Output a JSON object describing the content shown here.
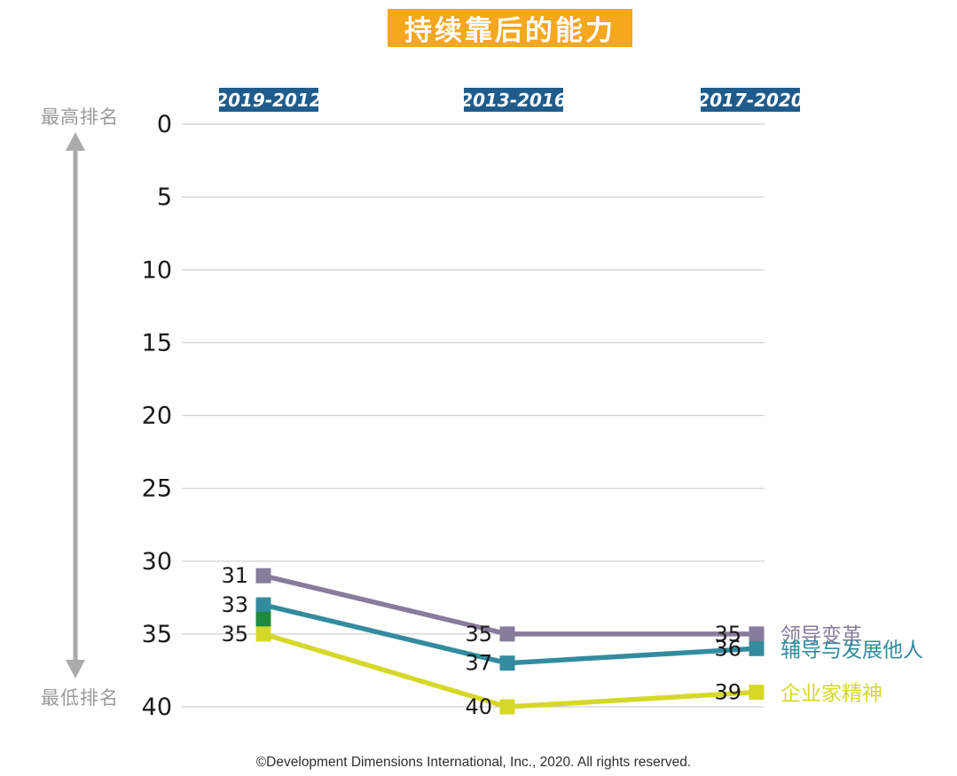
{
  "title": "持续靠后的能力",
  "axis_annotations": {
    "top": "最高排名",
    "bottom": "最低排名"
  },
  "footer": "©Development Dimensions International, Inc., 2020. All rights reserved.",
  "colors": {
    "title_bg": "#F5A71E",
    "title_text": "#FFFFFF",
    "period_bg": "#1F5C8C",
    "period_text": "#FFFFFF",
    "gridline": "#D2D2D2",
    "tick_text": "#1A1A1A",
    "value_label": "#1A1A1A",
    "annotation_text": "#9B9B9B",
    "arrow": "#ABABAB",
    "footer_text": "#2E2E2E"
  },
  "chart_data": {
    "type": "line",
    "title": "持续靠后的能力",
    "categories": [
      "2019-2012",
      "2013-2016",
      "2017-2020"
    ],
    "y_ticks": [
      0,
      5,
      10,
      15,
      20,
      25,
      30,
      35,
      40
    ],
    "ylim": [
      0,
      40
    ],
    "y_axis_note_top": "最高排名",
    "y_axis_note_bottom": "最低排名",
    "grid": true,
    "legend_position": "right-of-last-point",
    "series": [
      {
        "name": "领导变革",
        "color": "#877C9C",
        "values": [
          31,
          35,
          35
        ],
        "show_labels": true
      },
      {
        "name": "辅导与发展他人",
        "color": "#338B9E",
        "values": [
          33,
          37,
          36
        ],
        "show_labels": true
      },
      {
        "name": "",
        "color": "#1F8A3D",
        "values": [
          34,
          null,
          null
        ],
        "show_labels": false,
        "marker_only": true
      },
      {
        "name": "企业家精神",
        "color": "#D6D829",
        "values": [
          35,
          40,
          39
        ],
        "show_labels": true
      }
    ]
  }
}
